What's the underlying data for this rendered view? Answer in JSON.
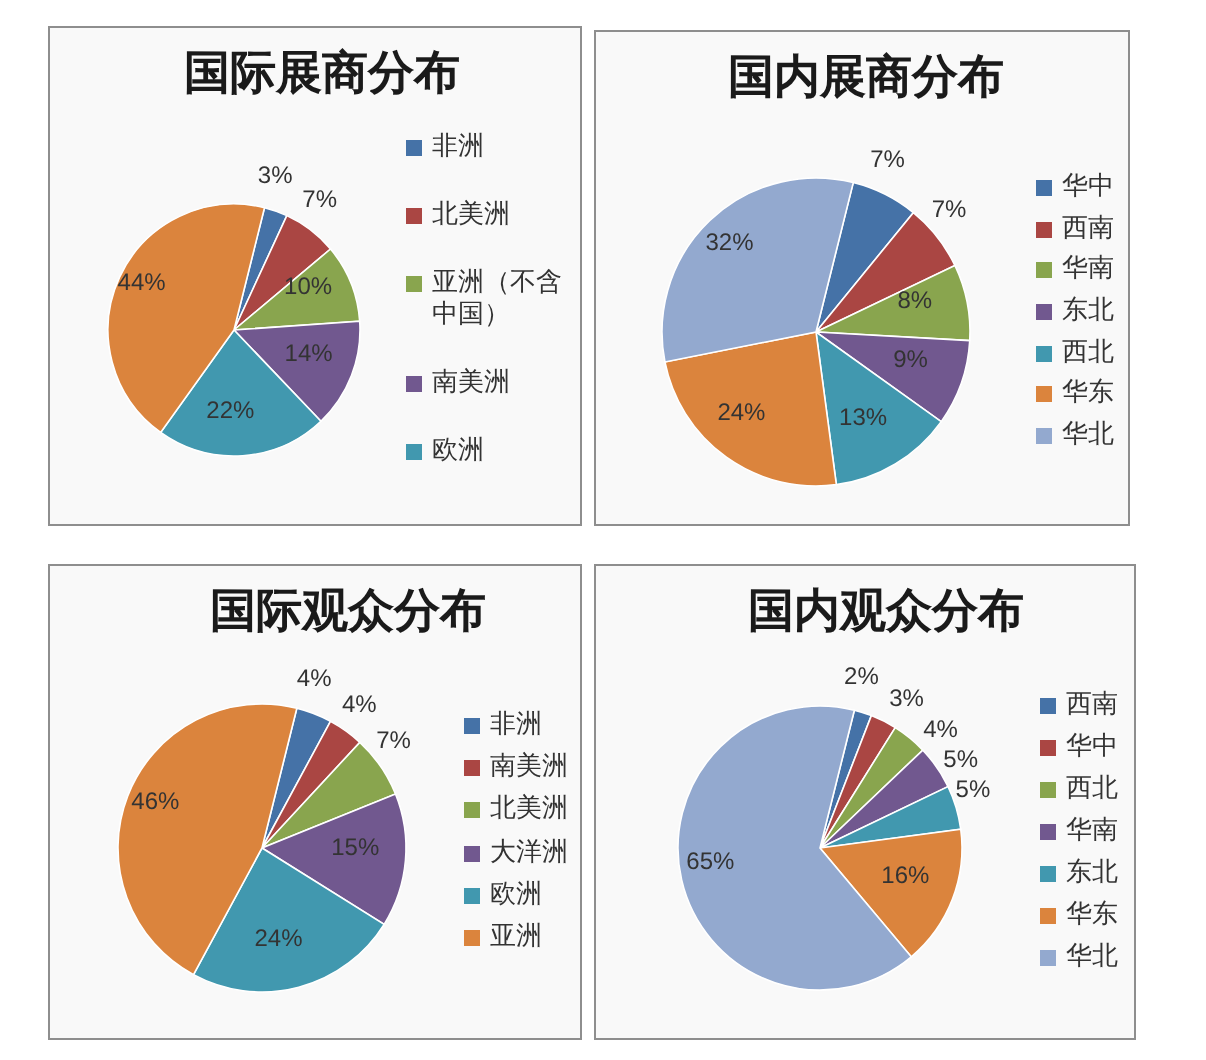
{
  "chart_data": [
    {
      "type": "pie",
      "title": "国际展商分布",
      "categories": [
        "非洲",
        "北美洲",
        "亚洲（不含中国）",
        "南美洲",
        "欧洲",
        null
      ],
      "values": [
        3,
        7,
        10,
        14,
        22,
        44
      ],
      "colors": [
        "#4572a7",
        "#aa4643",
        "#89a54e",
        "#71588f",
        "#4198af",
        "#db843d"
      ],
      "value_labels": [
        "3%",
        "7%",
        "10%",
        "14%",
        "22%",
        "44%"
      ],
      "legend": "right"
    },
    {
      "type": "pie",
      "title": "国内展商分布",
      "categories": [
        "华中",
        "西南",
        "华南",
        "东北",
        "西北",
        "华东",
        "华北"
      ],
      "values": [
        7,
        7,
        8,
        9,
        13,
        24,
        32
      ],
      "colors": [
        "#4572a7",
        "#aa4643",
        "#89a54e",
        "#71588f",
        "#4198af",
        "#db843d",
        "#93a9cf"
      ],
      "value_labels": [
        "7%",
        "7%",
        "8%",
        "9%",
        "13%",
        "24%",
        "32%"
      ],
      "legend": "right"
    },
    {
      "type": "pie",
      "title": "国际观众分布",
      "categories": [
        "非洲",
        "南美洲",
        "北美洲",
        "大洋洲",
        "欧洲",
        "亚洲"
      ],
      "values": [
        4,
        4,
        7,
        15,
        24,
        46
      ],
      "colors": [
        "#4572a7",
        "#aa4643",
        "#89a54e",
        "#71588f",
        "#4198af",
        "#db843d"
      ],
      "value_labels": [
        "4%",
        "4%",
        "7%",
        "15%",
        "24%",
        "46%"
      ],
      "legend": "right"
    },
    {
      "type": "pie",
      "title": "国内观众分布",
      "categories": [
        "西南",
        "华中",
        "西北",
        "华南",
        "东北",
        "华东",
        "华北"
      ],
      "values": [
        2,
        3,
        4,
        5,
        5,
        16,
        65
      ],
      "colors": [
        "#4572a7",
        "#aa4643",
        "#89a54e",
        "#71588f",
        "#4198af",
        "#db843d",
        "#93a9cf"
      ],
      "value_labels": [
        "2%",
        "3%",
        "4%",
        "5%",
        "5%",
        "16%",
        "65%"
      ],
      "legend": "right"
    }
  ]
}
